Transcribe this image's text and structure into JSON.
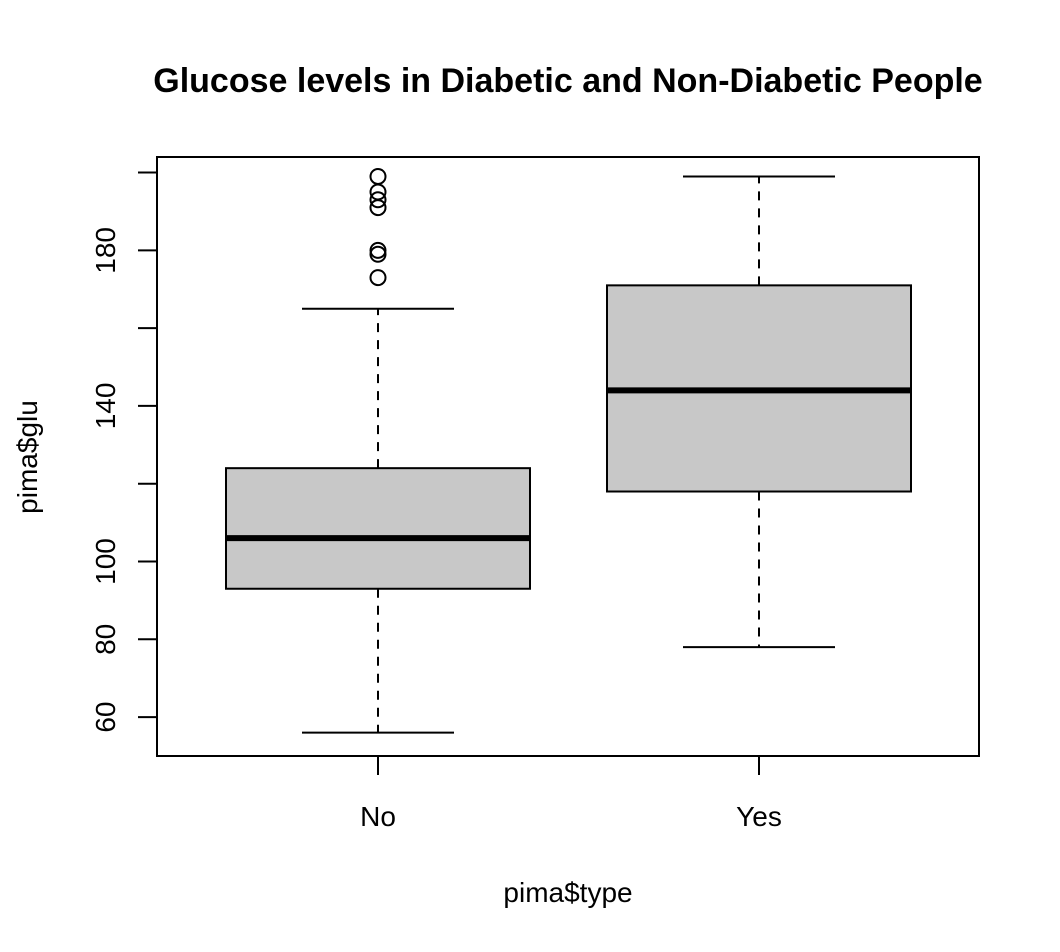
{
  "chart_data": {
    "type": "boxplot",
    "title": "Glucose levels in Diabetic and Non-Diabetic People",
    "xlabel": "pima$type",
    "ylabel": "pima$glu",
    "categories": [
      "No",
      "Yes"
    ],
    "ylim": [
      50,
      204
    ],
    "yticks": [
      60,
      80,
      100,
      120,
      140,
      160,
      180,
      200
    ],
    "ytick_labels": [
      "60",
      "80",
      "100",
      "",
      "140",
      "",
      "180",
      ""
    ],
    "boxes": [
      {
        "category": "No",
        "whisker_low": 56,
        "q1": 93,
        "median": 106,
        "q3": 124,
        "whisker_high": 165,
        "outliers": [
          173,
          179,
          180,
          191,
          193,
          195,
          199
        ]
      },
      {
        "category": "Yes",
        "whisker_low": 78,
        "q1": 118,
        "median": 144,
        "q3": 171,
        "whisker_high": 199,
        "outliers": []
      }
    ],
    "box_fill": "#c8c8c8",
    "grid": false,
    "legend": "none"
  }
}
